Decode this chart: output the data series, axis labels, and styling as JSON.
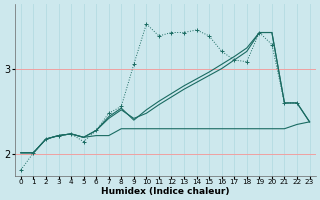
{
  "xlabel": "Humidex (Indice chaleur)",
  "bg_color": "#cde8ed",
  "line_color": "#1a6b62",
  "grid_color_v": "#b8dde3",
  "grid_color_h": "#f0a0a0",
  "xlim": [
    -0.5,
    23.5
  ],
  "ylim": [
    1.75,
    3.75
  ],
  "xticks": [
    0,
    1,
    2,
    3,
    4,
    5,
    6,
    7,
    8,
    9,
    10,
    11,
    12,
    13,
    14,
    15,
    16,
    17,
    18,
    19,
    20,
    21,
    22,
    23
  ],
  "yticks": [
    2,
    3
  ],
  "lines": [
    {
      "x": [
        0,
        1,
        2,
        3,
        4,
        5,
        6,
        7,
        8,
        9,
        10,
        11,
        12,
        13,
        14,
        15,
        16,
        17,
        18,
        19,
        20,
        21,
        22
      ],
      "y": [
        1.82,
        2.02,
        2.18,
        2.22,
        2.24,
        2.15,
        2.28,
        2.48,
        2.56,
        3.05,
        3.52,
        3.38,
        3.42,
        3.42,
        3.45,
        3.38,
        3.2,
        3.1,
        3.08,
        3.42,
        3.28,
        2.6,
        2.6
      ],
      "marker": true,
      "linestyle": "dotted"
    },
    {
      "x": [
        0,
        1,
        2,
        3,
        4,
        5,
        6,
        7,
        8,
        9,
        10,
        11,
        12,
        13,
        14,
        15,
        16,
        17,
        18,
        19,
        20,
        21,
        22,
        23
      ],
      "y": [
        2.02,
        2.02,
        2.18,
        2.22,
        2.24,
        2.2,
        2.22,
        2.22,
        2.3,
        2.3,
        2.3,
        2.3,
        2.3,
        2.3,
        2.3,
        2.3,
        2.3,
        2.3,
        2.3,
        2.3,
        2.3,
        2.3,
        2.35,
        2.38
      ],
      "marker": false,
      "linestyle": "solid"
    },
    {
      "x": [
        0,
        1,
        2,
        3,
        4,
        5,
        6,
        7,
        8,
        9,
        10,
        11,
        12,
        13,
        14,
        15,
        16,
        17,
        18,
        19,
        20,
        21,
        22,
        23
      ],
      "y": [
        2.02,
        2.02,
        2.18,
        2.22,
        2.24,
        2.2,
        2.28,
        2.42,
        2.52,
        2.42,
        2.48,
        2.58,
        2.67,
        2.76,
        2.84,
        2.92,
        3.0,
        3.1,
        3.2,
        3.42,
        3.42,
        2.6,
        2.6,
        2.38
      ],
      "marker": false,
      "linestyle": "solid"
    },
    {
      "x": [
        0,
        1,
        2,
        3,
        4,
        5,
        6,
        7,
        8,
        9,
        10,
        11,
        12,
        13,
        14,
        15,
        16,
        17,
        18,
        19,
        20,
        21,
        22,
        23
      ],
      "y": [
        2.02,
        2.02,
        2.18,
        2.22,
        2.24,
        2.2,
        2.28,
        2.44,
        2.54,
        2.4,
        2.52,
        2.62,
        2.71,
        2.8,
        2.88,
        2.96,
        3.05,
        3.14,
        3.24,
        3.42,
        3.42,
        2.6,
        2.6,
        2.38
      ],
      "marker": false,
      "linestyle": "solid"
    }
  ]
}
